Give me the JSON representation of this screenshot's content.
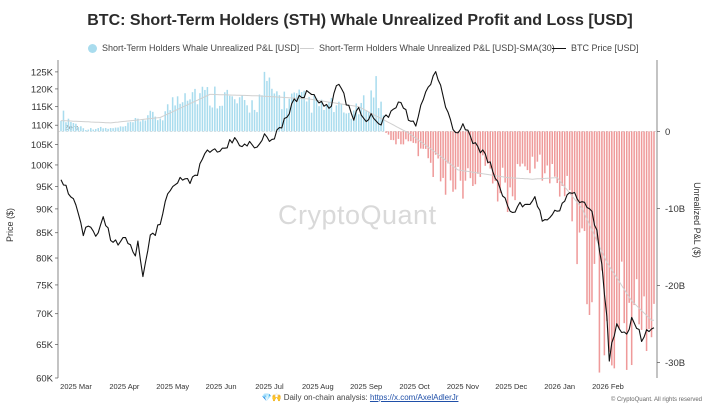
{
  "chart_data": {
    "type": "bar+line",
    "title": "BTC: Short-Term Holders (STH) Whale Unrealized Profit and Loss [USD]",
    "legend": [
      {
        "label": "Short-Term Holders Whale Unrealized P&L [USD]",
        "style": "bar",
        "color": "#a9dcee"
      },
      {
        "label": "Short-Term Holders Whale Unrealized P&L [USD]-SMA(30)",
        "style": "line",
        "color": "#cfcfcf"
      },
      {
        "label": "BTC Price [USD]",
        "style": "line",
        "color": "#111111"
      }
    ],
    "left_axis": {
      "label": "Price ($)",
      "ticks": [
        "125K",
        "120K",
        "115K",
        "110K",
        "105K",
        "100K",
        "95K",
        "90K",
        "85K",
        "80K",
        "75K",
        "70K",
        "65K",
        "60K"
      ],
      "range": [
        60000,
        128000
      ],
      "scale": "log"
    },
    "right_axis": {
      "label": "Unrealized P&L ($)",
      "ticks": [
        "0",
        "-10B",
        "-20B",
        "-30B"
      ],
      "range": [
        -32,
        9
      ],
      "unit": "B USD"
    },
    "x_labels": [
      "2025 Mar",
      "2025 Apr",
      "2025 May",
      "2025 Jun",
      "2025 Jul",
      "2025 Aug",
      "2025 Sep",
      "2025 Oct",
      "2025 Nov",
      "2025 Dec",
      "2026 Jan",
      "2026 Feb"
    ],
    "zero_label": "Zero",
    "series": {
      "pnl_keypoints": [
        [
          0,
          2.5
        ],
        [
          6,
          1
        ],
        [
          10,
          0.3
        ],
        [
          15,
          0.5
        ],
        [
          20,
          0.4
        ],
        [
          25,
          0.6
        ],
        [
          30,
          1.4
        ],
        [
          35,
          2.2
        ],
        [
          40,
          2
        ],
        [
          45,
          4
        ],
        [
          50,
          6.5
        ],
        [
          55,
          5.5
        ],
        [
          60,
          5
        ],
        [
          65,
          5.5
        ],
        [
          70,
          4.2
        ],
        [
          75,
          3.5
        ],
        [
          80,
          4.5
        ],
        [
          82,
          6.5
        ],
        [
          85,
          5.6
        ],
        [
          90,
          4.6
        ],
        [
          95,
          4.6
        ],
        [
          100,
          4.2
        ],
        [
          105,
          3.5
        ],
        [
          110,
          3.6
        ],
        [
          115,
          2.5
        ],
        [
          120,
          3
        ],
        [
          125,
          5
        ],
        [
          127,
          6.5
        ],
        [
          130,
          2.2
        ],
        [
          131,
          -0.3
        ],
        [
          135,
          -1.5
        ],
        [
          140,
          -1.5
        ],
        [
          145,
          -3
        ],
        [
          150,
          -5
        ],
        [
          155,
          -7
        ],
        [
          160,
          -7.5
        ],
        [
          165,
          -7
        ],
        [
          170,
          -5.5
        ],
        [
          175,
          -8
        ],
        [
          180,
          -8.5
        ],
        [
          185,
          -7.5
        ],
        [
          190,
          -4
        ],
        [
          195,
          -5.5
        ],
        [
          200,
          -7
        ],
        [
          205,
          -9.5
        ],
        [
          210,
          -17
        ],
        [
          214,
          -23
        ],
        [
          218,
          -28
        ],
        [
          221,
          -31.5
        ],
        [
          222,
          -29
        ],
        [
          225,
          -28.5
        ],
        [
          230,
          -26.5
        ],
        [
          234,
          -25.5
        ],
        [
          238,
          -27
        ]
      ],
      "sma30_keypoints": [
        [
          0,
          1.4
        ],
        [
          20,
          1.1
        ],
        [
          40,
          1.8
        ],
        [
          60,
          4.8
        ],
        [
          80,
          4.6
        ],
        [
          100,
          4.2
        ],
        [
          120,
          3.2
        ],
        [
          130,
          1.5
        ],
        [
          140,
          -0.2
        ],
        [
          150,
          -2.5
        ],
        [
          160,
          -5
        ],
        [
          180,
          -6
        ],
        [
          190,
          -6.2
        ],
        [
          200,
          -6
        ],
        [
          210,
          -10
        ],
        [
          220,
          -17
        ],
        [
          230,
          -22
        ],
        [
          238,
          -24.5
        ]
      ],
      "price_keypoints": [
        [
          0,
          96500
        ],
        [
          3,
          94000
        ],
        [
          6,
          91000
        ],
        [
          9,
          85000
        ],
        [
          12,
          86500
        ],
        [
          14,
          84000
        ],
        [
          17,
          88000
        ],
        [
          20,
          84000
        ],
        [
          23,
          83000
        ],
        [
          26,
          84500
        ],
        [
          28,
          82500
        ],
        [
          30,
          80000
        ],
        [
          31,
          83000
        ],
        [
          33,
          76500
        ],
        [
          34,
          79000
        ],
        [
          36,
          84000
        ],
        [
          38,
          85000
        ],
        [
          40,
          87000
        ],
        [
          43,
          93500
        ],
        [
          46,
          95500
        ],
        [
          49,
          97000
        ],
        [
          52,
          96000
        ],
        [
          55,
          98000
        ],
        [
          58,
          103000
        ],
        [
          61,
          104000
        ],
        [
          64,
          103500
        ],
        [
          67,
          105000
        ],
        [
          70,
          106500
        ],
        [
          73,
          104000
        ],
        [
          76,
          105500
        ],
        [
          79,
          104000
        ],
        [
          82,
          107500
        ],
        [
          85,
          106000
        ],
        [
          88,
          109000
        ],
        [
          91,
          112000
        ],
        [
          94,
          117000
        ],
        [
          97,
          118000
        ],
        [
          100,
          119000
        ],
        [
          103,
          117500
        ],
        [
          106,
          115500
        ],
        [
          108,
          114000
        ],
        [
          110,
          118000
        ],
        [
          112,
          122000
        ],
        [
          115,
          116000
        ],
        [
          118,
          112000
        ],
        [
          120,
          115000
        ],
        [
          122,
          111000
        ],
        [
          125,
          113000
        ],
        [
          128,
          110000
        ],
        [
          131,
          112000
        ],
        [
          134,
          114000
        ],
        [
          137,
          117000
        ],
        [
          140,
          112000
        ],
        [
          143,
          110000
        ],
        [
          146,
          117000
        ],
        [
          149,
          122000
        ],
        [
          151,
          124500
        ],
        [
          153,
          121000
        ],
        [
          155,
          115000
        ],
        [
          157,
          111500
        ],
        [
          159,
          108000
        ],
        [
          162,
          110000
        ],
        [
          165,
          107000
        ],
        [
          168,
          104000
        ],
        [
          170,
          103000
        ],
        [
          173,
          100000
        ],
        [
          176,
          96000
        ],
        [
          179,
          92000
        ],
        [
          182,
          89000
        ],
        [
          185,
          91000
        ],
        [
          188,
          90500
        ],
        [
          191,
          92000
        ],
        [
          194,
          88000
        ],
        [
          196,
          87500
        ],
        [
          198,
          89000
        ],
        [
          201,
          90000
        ],
        [
          204,
          93000
        ],
        [
          206,
          94000
        ],
        [
          208,
          92000
        ],
        [
          210,
          91500
        ],
        [
          212,
          90500
        ],
        [
          214,
          89500
        ],
        [
          216,
          85000
        ],
        [
          218,
          79000
        ],
        [
          219,
          73000
        ],
        [
          220,
          70000
        ],
        [
          221,
          62500
        ],
        [
          222,
          65000
        ],
        [
          224,
          68000
        ],
        [
          226,
          67000
        ],
        [
          228,
          66500
        ],
        [
          230,
          69000
        ],
        [
          232,
          68000
        ],
        [
          234,
          66000
        ],
        [
          236,
          67000
        ],
        [
          238,
          67500
        ]
      ]
    }
  },
  "footer": {
    "icons": "💎🙌",
    "text": "Daily on-chain analysis:",
    "link": "https://x.com/AxelAdlerJr"
  },
  "watermark": "CryptoQuant",
  "copyright": "© CryptoQuant. All rights reserved"
}
